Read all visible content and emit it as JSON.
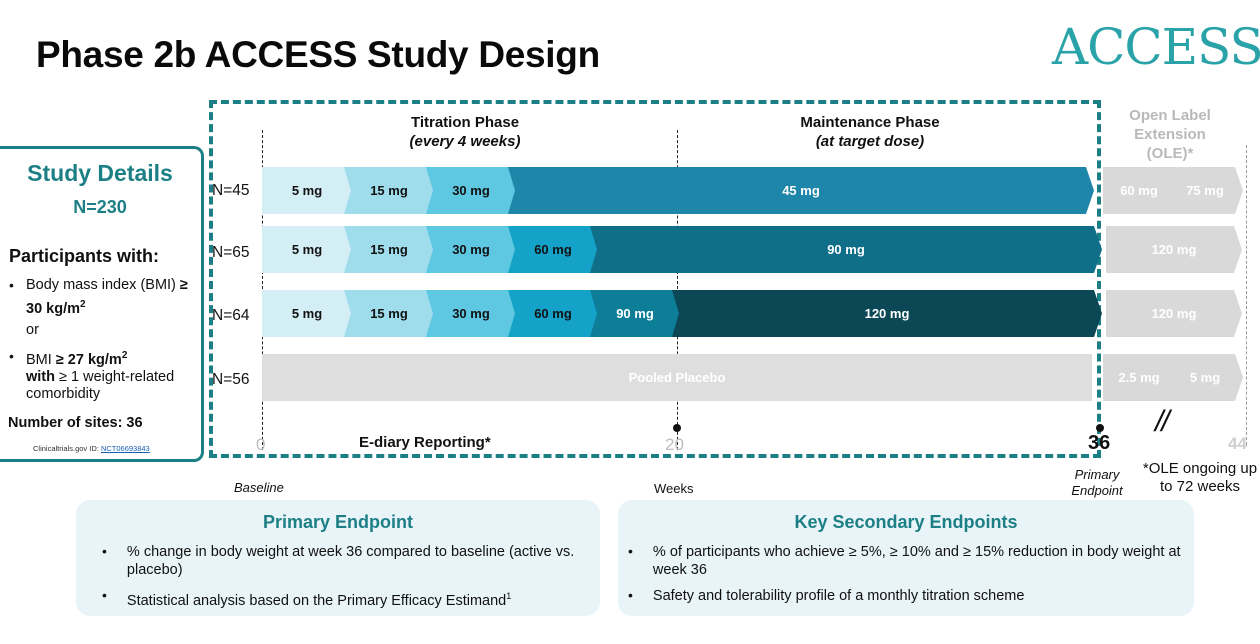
{
  "title": "Phase 2b ACCESS Study Design",
  "logo_text": "ACCESS",
  "study_details": {
    "heading": "Study Details",
    "n": "N=230",
    "participants_heading": "Participants with:",
    "criterion_1_pre": "Body mass index (BMI) ",
    "criterion_1_bold": "≥ 30 kg/m",
    "criterion_1_sup": "2",
    "or_text": "or",
    "criterion_2_pre": "BMI ",
    "criterion_2_bold": "≥ 27 kg/m",
    "criterion_2_sup": "2",
    "criterion_2_with": "with",
    "criterion_2_post": " ≥ 1 weight-related comorbidity",
    "sites": "Number of sites: 36",
    "trial_id_label": "Clinicaltrials.gov ID: ",
    "trial_id": "NCT06693843"
  },
  "phases": {
    "titration_title": "Titration Phase",
    "titration_sub": "(every 4 weeks)",
    "maintenance_title": "Maintenance Phase",
    "maintenance_sub": "(at target dose)",
    "ole_title": "Open Label Extension (OLE)*"
  },
  "colors": {
    "teal_dark": "#1d7f86",
    "dose_5": "#d4eef5",
    "dose_15": "#9fdcec",
    "dose_30": "#5ec8e2",
    "dose_60": "#14a2c8",
    "dose_90": "#0d7e98",
    "dose_45_maint": "#1d86a9",
    "dose_90_maint": "#0f6f89",
    "dose_120_maint": "#0b4755",
    "placebo": "#dedede",
    "ole": "#d9d9d9"
  },
  "arms": [
    {
      "label": "N=45",
      "segments": [
        "5 mg",
        "15 mg",
        "30 mg",
        "45 mg"
      ],
      "ole": [
        "60 mg",
        "75 mg"
      ]
    },
    {
      "label": "N=65",
      "segments": [
        "5 mg",
        "15 mg",
        "30 mg",
        "60 mg",
        "90 mg"
      ],
      "ole": [
        "120 mg"
      ]
    },
    {
      "label": "N=64",
      "segments": [
        "5 mg",
        "15 mg",
        "30 mg",
        "60 mg",
        "90 mg",
        "120 mg"
      ],
      "ole": [
        "120 mg"
      ]
    },
    {
      "label": "N=56",
      "segments": [
        "Pooled Placebo"
      ],
      "ole": [
        "2.5 mg",
        "5 mg"
      ]
    }
  ],
  "axis": {
    "ticks": [
      "0",
      "20",
      "36",
      "44"
    ],
    "ediary": "E-diary Reporting*",
    "baseline": "Baseline",
    "weeks": "Weeks",
    "primary_endpoint_label": "Primary Endpoint",
    "break_mark": "//",
    "ole_note": "*OLE ongoing up to 72 weeks"
  },
  "endpoints": {
    "primary_title": "Primary Endpoint",
    "primary_items": [
      "% change in body weight at week 36 compared to baseline (active vs. placebo)",
      "Statistical analysis based on the Primary Efficacy Estimand"
    ],
    "primary_item_2_sup": "1",
    "secondary_title": "Key Secondary Endpoints",
    "secondary_items": [
      "% of participants who achieve ≥ 5%, ≥ 10% and ≥ 15% reduction in body weight at week 36",
      "Safety and tolerability profile of a monthly titration scheme"
    ]
  }
}
